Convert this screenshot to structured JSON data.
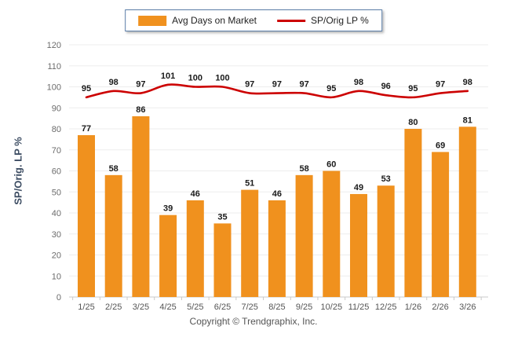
{
  "legend": {
    "bar_label": "Avg Days on Market",
    "line_label": "SP/Orig LP %"
  },
  "y_axis_title": "SP/Orig. LP %",
  "footer": {
    "copyright": "Copyright © Trendgraphix, Inc."
  },
  "colors": {
    "bar": "#F0911E",
    "line": "#CC0000",
    "grid": "#ededed",
    "axis": "#c9c9c9",
    "tick_label": "#6b6b6b",
    "x_label": "#555555",
    "value_label": "#1a1a1a"
  },
  "chart_data": {
    "type": "bar",
    "categories": [
      "1/25",
      "2/25",
      "3/25",
      "4/25",
      "5/25",
      "6/25",
      "7/25",
      "8/25",
      "9/25",
      "10/25",
      "11/25",
      "12/25",
      "1/26",
      "2/26",
      "3/26"
    ],
    "series": [
      {
        "name": "Avg Days on Market",
        "type": "bar",
        "values": [
          77,
          58,
          86,
          39,
          46,
          35,
          51,
          46,
          58,
          60,
          49,
          53,
          80,
          69,
          81
        ]
      },
      {
        "name": "SP/Orig LP %",
        "type": "line",
        "values": [
          95,
          98,
          97,
          101,
          100,
          100,
          97,
          97,
          97,
          95,
          98,
          96,
          95,
          97,
          98
        ]
      }
    ],
    "title": "",
    "xlabel": "",
    "ylabel": "SP/Orig. LP %",
    "ylim": [
      0,
      120
    ],
    "ytick_step": 10,
    "grid": true,
    "legend_position": "top-center",
    "data_labels": true
  }
}
